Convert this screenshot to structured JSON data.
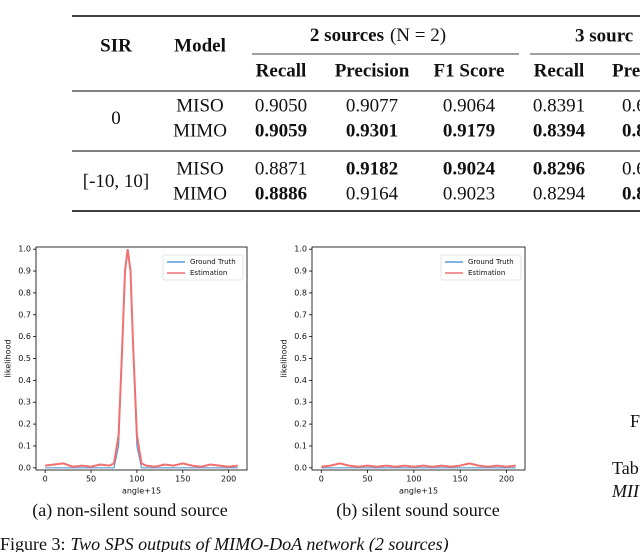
{
  "table": {
    "header": {
      "sir": "SIR",
      "model": "Model",
      "group1": "2 sources",
      "group1_note": "(N = 2)",
      "group2": "3 sourc",
      "columns": [
        "Recall",
        "Precision",
        "F1 Score",
        "Recall",
        "Pre"
      ]
    },
    "groups": [
      {
        "sir": "0",
        "rows": [
          {
            "model": "MISO",
            "cells": [
              "0.9050",
              "0.9077",
              "0.9064",
              "0.8391",
              "0.6"
            ]
          },
          {
            "model": "MIMO",
            "cells": [
              "0.9059",
              "0.9301",
              "0.9179",
              "0.8394",
              "0.8"
            ]
          }
        ]
      },
      {
        "sir": "[-10, 10]",
        "rows": [
          {
            "model": "MISO",
            "cells": [
              "0.8871",
              "0.9182",
              "0.9024",
              "0.8296",
              "0.6"
            ]
          },
          {
            "model": "MIMO",
            "cells": [
              "0.8886",
              "0.9164",
              "0.9023",
              "0.8294",
              "0.8"
            ]
          }
        ]
      }
    ]
  },
  "chart_data": [
    {
      "type": "line",
      "caption": "(a) non-silent sound source",
      "xlabel": "angle+15",
      "ylabel": "likelihood",
      "xlim": [
        -10,
        220
      ],
      "ylim": [
        -0.01,
        1.01
      ],
      "xticks": [
        0,
        50,
        100,
        150,
        200
      ],
      "yticks": [
        {
          "value": 0,
          "label": "0.0"
        },
        0.1,
        0.2,
        0.3,
        0.4,
        0.5,
        0.6,
        0.7,
        0.8,
        0.9,
        {
          "value": 1,
          "label": "1.0"
        }
      ],
      "legend": "upper right",
      "x": [
        0,
        10,
        20,
        30,
        40,
        50,
        60,
        70,
        75,
        80,
        84,
        87,
        90,
        93,
        96,
        100,
        105,
        110,
        120,
        130,
        140,
        150,
        160,
        170,
        180,
        190,
        200,
        210
      ],
      "series": [
        {
          "name": "Ground Truth",
          "color": "#5b9bd5",
          "values": [
            0,
            0,
            0,
            0,
            0,
            0,
            0,
            0,
            0,
            0.1,
            0.55,
            0.9,
            1.0,
            0.9,
            0.55,
            0.1,
            0,
            0,
            0,
            0,
            0,
            0,
            0,
            0,
            0,
            0,
            0,
            0
          ]
        },
        {
          "name": "Estimation",
          "color": "#f07070",
          "values": [
            0.01,
            0.015,
            0.02,
            0.005,
            0.01,
            0.005,
            0.015,
            0.01,
            0.02,
            0.15,
            0.55,
            0.9,
            1.0,
            0.9,
            0.55,
            0.15,
            0.02,
            0.01,
            0.005,
            0.015,
            0.01,
            0.02,
            0.01,
            0.005,
            0.015,
            0.01,
            0.005,
            0.01
          ]
        }
      ]
    },
    {
      "type": "line",
      "caption": "(b) silent sound source",
      "xlabel": "angle+15",
      "ylabel": "likelihood",
      "xlim": [
        -10,
        220
      ],
      "ylim": [
        -0.01,
        1.01
      ],
      "xticks": [
        0,
        50,
        100,
        150,
        200
      ],
      "yticks": [
        {
          "value": 0,
          "label": "0.0"
        },
        0.1,
        0.2,
        0.3,
        0.4,
        0.5,
        0.6,
        0.7,
        0.8,
        0.9,
        {
          "value": 1,
          "label": "1.0"
        }
      ],
      "legend": "upper right",
      "x": [
        0,
        10,
        20,
        30,
        40,
        50,
        60,
        70,
        80,
        90,
        100,
        110,
        120,
        130,
        140,
        150,
        160,
        170,
        180,
        190,
        200,
        210
      ],
      "series": [
        {
          "name": "Ground Truth",
          "color": "#5b9bd5",
          "values": [
            0,
            0,
            0,
            0,
            0,
            0,
            0,
            0,
            0,
            0,
            0,
            0,
            0,
            0,
            0,
            0,
            0,
            0,
            0,
            0,
            0,
            0
          ]
        },
        {
          "name": "Estimation",
          "color": "#f07070",
          "values": [
            0.005,
            0.01,
            0.02,
            0.01,
            0.005,
            0.01,
            0.005,
            0.01,
            0.005,
            0.01,
            0.005,
            0.01,
            0.005,
            0.01,
            0.005,
            0.01,
            0.02,
            0.01,
            0.005,
            0.01,
            0.005,
            0.01
          ]
        }
      ]
    }
  ],
  "figure_caption": {
    "label": "Figure 3:",
    "text": "Two SPS outputs of MIMO-DoA network (2 sources)"
  },
  "fragments": {
    "side_f": "F",
    "side_tab": "Tab",
    "side_mi": "MII"
  }
}
